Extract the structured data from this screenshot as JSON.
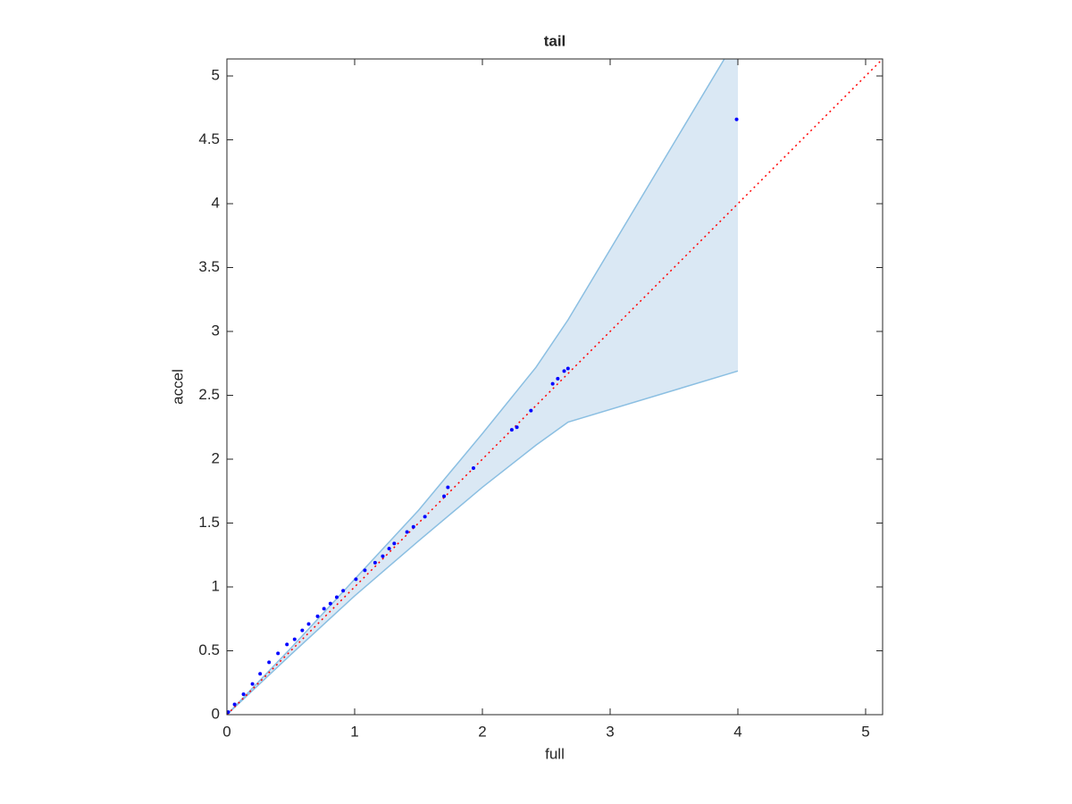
{
  "chart_data": {
    "type": "scatter",
    "title": "tail",
    "x_label": "full",
    "y_label": "accel",
    "points": {
      "color": "#0000ff",
      "x": [
        0.01,
        0.06,
        0.13,
        0.2,
        0.26,
        0.33,
        0.4,
        0.47,
        0.53,
        0.59,
        0.64,
        0.71,
        0.76,
        0.81,
        0.86,
        0.91,
        1.01,
        1.08,
        1.16,
        1.22,
        1.27,
        1.31,
        1.41,
        1.46,
        1.55,
        1.7,
        1.73,
        1.93,
        2.23,
        2.27,
        2.38,
        2.55,
        2.59,
        2.64,
        2.67,
        3.99
      ],
      "y": [
        0.02,
        0.08,
        0.16,
        0.24,
        0.32,
        0.41,
        0.48,
        0.55,
        0.59,
        0.66,
        0.71,
        0.77,
        0.83,
        0.87,
        0.92,
        0.97,
        1.06,
        1.13,
        1.19,
        1.24,
        1.3,
        1.34,
        1.43,
        1.47,
        1.55,
        1.71,
        1.78,
        1.93,
        2.23,
        2.25,
        2.38,
        2.59,
        2.63,
        2.69,
        2.71,
        4.66
      ]
    },
    "band": {
      "fill": "#dae8f4",
      "stroke": "#8bbfe2",
      "x": [
        0,
        0.5,
        1,
        1.5,
        2,
        2.42,
        2.67,
        4
      ],
      "upper": [
        0,
        0.52,
        1.06,
        1.6,
        2.2,
        2.72,
        3.09,
        5.31
      ],
      "lower": [
        0,
        0.47,
        0.93,
        1.36,
        1.78,
        2.11,
        2.29,
        2.69
      ]
    },
    "diagonal": {
      "color": "#ff0000"
    },
    "xlim": [
      0,
      5.133
    ],
    "ylim": [
      0,
      5.133
    ],
    "xticks": [
      0,
      1,
      2,
      3,
      4,
      5
    ],
    "yticks": [
      0,
      0.5,
      1,
      1.5,
      2,
      2.5,
      3,
      3.5,
      4,
      4.5,
      5
    ]
  }
}
